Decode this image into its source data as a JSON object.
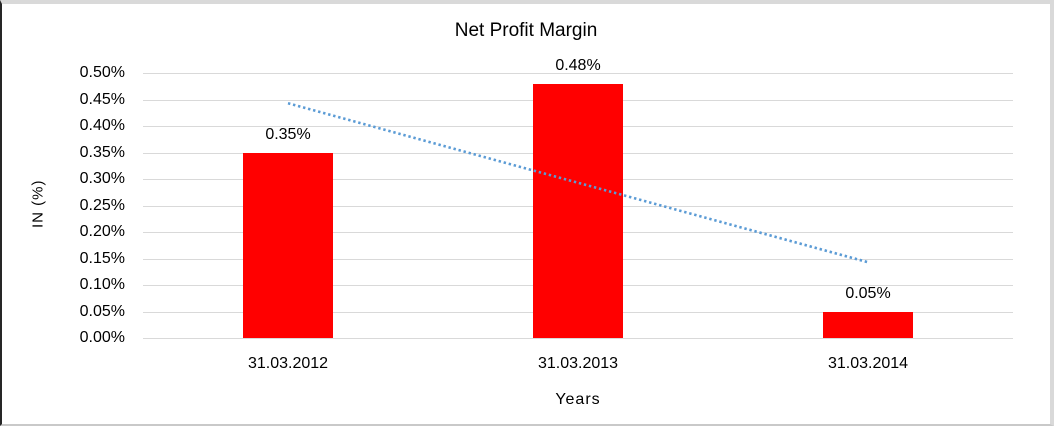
{
  "chart_data": {
    "type": "bar",
    "title": "Net Profit Margin",
    "xlabel": "Years",
    "ylabel": "IN (%)",
    "categories": [
      "31.03.2012",
      "31.03.2013",
      "31.03.2014"
    ],
    "values": [
      0.35,
      0.48,
      0.05
    ],
    "data_labels": [
      "0.35%",
      "0.48%",
      "0.05%"
    ],
    "ylim": [
      0,
      0.5
    ],
    "ytick_step": 0.05,
    "ytick_labels": [
      "0.00%",
      "0.05%",
      "0.10%",
      "0.15%",
      "0.20%",
      "0.25%",
      "0.30%",
      "0.35%",
      "0.40%",
      "0.45%",
      "0.50%"
    ],
    "grid": "horizontal",
    "legend": "none",
    "bar_color": "#ff0000",
    "gridline_color": "#d9d9d9",
    "trendline": {
      "type": "linear",
      "style": "dotted",
      "color": "#5b9bd5",
      "start_value": 0.443,
      "end_value": 0.143
    }
  }
}
